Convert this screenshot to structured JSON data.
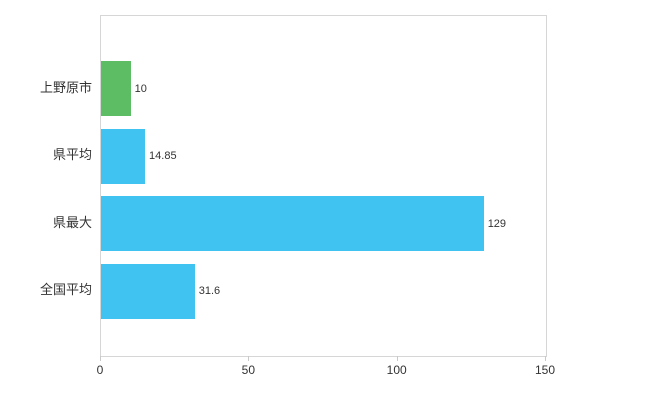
{
  "chart": {
    "background": "#ffffff",
    "axis_color": "#d6d6d6",
    "tick_color": "#c9c9c9",
    "text_color": "#333333"
  },
  "chart_data": {
    "type": "bar",
    "orientation": "horizontal",
    "title": "",
    "xlabel": "",
    "ylabel": "",
    "categories": [
      "上野原市",
      "県平均",
      "県最大",
      "全国平均"
    ],
    "values": [
      10,
      14.85,
      129,
      31.6
    ],
    "value_labels": [
      "10",
      "14.85",
      "129",
      "31.6"
    ],
    "series_colors": [
      "#5cbd64",
      "#41c3f2",
      "#41c3f2",
      "#41c3f2"
    ],
    "xlim": [
      0,
      150
    ],
    "x_ticks": [
      "0",
      "50",
      "100",
      "150"
    ],
    "x_tick_values": [
      0,
      50,
      100,
      150
    ],
    "grid": false,
    "legend": false
  }
}
